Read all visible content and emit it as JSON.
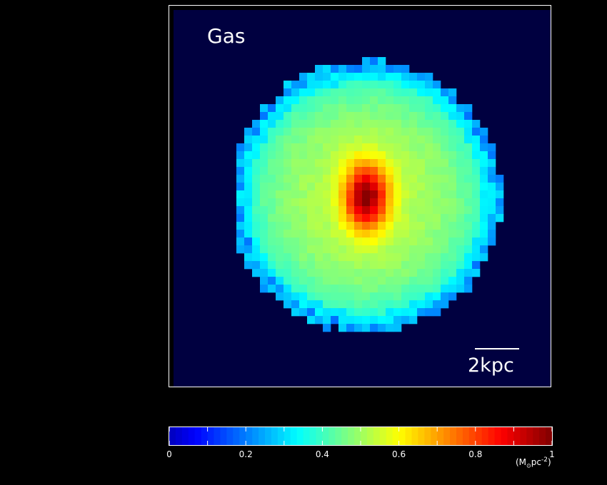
{
  "chart_data": {
    "type": "heatmap",
    "title": "",
    "panel_label": "Gas",
    "scale_bar": "2kpc",
    "colormap": "jet",
    "background_color": "#000040",
    "grid": false,
    "field": {
      "description_of_shape": "gas surface density map of a disk galaxy, face-on",
      "disk_radius_kpc": 5.9,
      "center_offset_kpc": [
        0.0,
        0.0
      ],
      "peak_value": 1.0,
      "edge_value": 0.25,
      "plateau_value": 0.55
    },
    "colorbar": {
      "range": [
        0,
        1
      ],
      "ticks": [
        0,
        0.2,
        0.4,
        0.6,
        0.8,
        1
      ],
      "tick_labels": [
        "0",
        "0.2",
        "0.4",
        "0.6",
        "0.8",
        "1"
      ],
      "unit_base": "(M",
      "unit_sub": "⊙",
      "unit_mid": "pc",
      "unit_sup": "-2",
      "unit_end": ")"
    }
  }
}
